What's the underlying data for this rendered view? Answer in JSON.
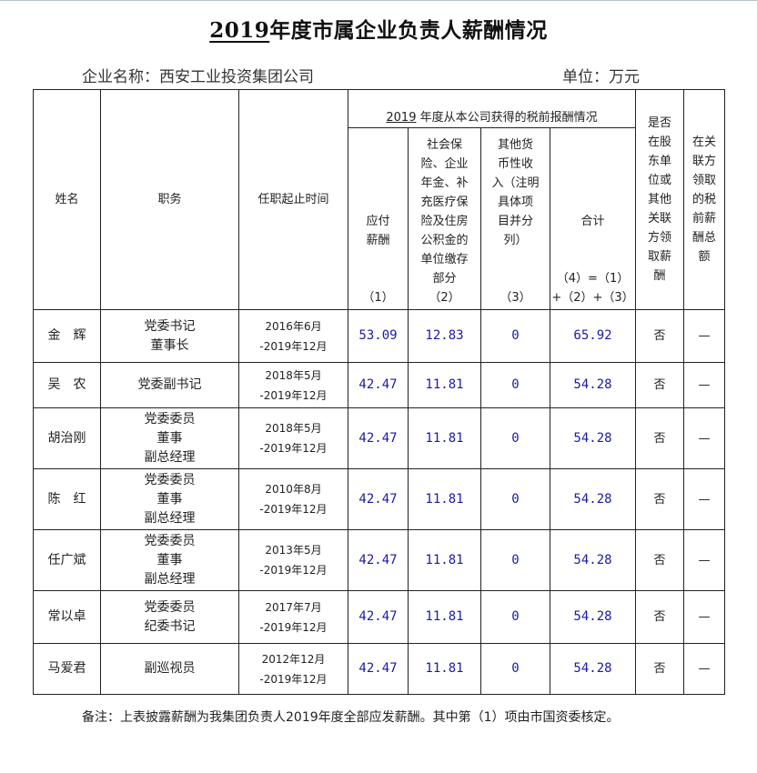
{
  "title": {
    "year": "2019",
    "rest": "年度市属企业负责人薪酬情况"
  },
  "company_label": "企业名称：西安工业投资集团公司",
  "unit_label": "单位：万元",
  "headers": {
    "name": "姓名",
    "position": "职务",
    "term": "任职起止时间",
    "group_year": "2019",
    "group_rest": "年度从本公司获得的税前报酬情况",
    "c1": "应付\n薪酬",
    "c1_no": "（1）",
    "c2": "社会保\n险、企业\n年金、补\n充医疗保\n险及住房\n公积金的\n单位缴存\n部分",
    "c2_no": "（2）",
    "c3": "其他货\n币性收\n入（注明\n具体项\n目并分\n列）",
    "c3_no": "（3）",
    "c4": "合计",
    "c4_no": "（4）=（1）\n+（2）+（3）",
    "shareholder": "是否\n在股\n东单\n位或\n其他\n关联\n方领\n取薪\n酬",
    "related": "在关\n联方\n领取\n的税\n前薪\n酬总\n额"
  },
  "rows": [
    {
      "name": "金　辉",
      "position": "党委书记\n董事长",
      "term": "2016年6月\n-2019年12月",
      "c1": "53.09",
      "c2": "12.83",
      "c3": "0",
      "c4": "65.92",
      "shareholder": "否",
      "related": "—"
    },
    {
      "name": "吴　农",
      "position": "党委副书记",
      "term": "2018年5月\n-2019年12月",
      "c1": "42.47",
      "c2": "11.81",
      "c3": "0",
      "c4": "54.28",
      "shareholder": "否",
      "related": "—"
    },
    {
      "name": "胡治刚",
      "position": "党委委员\n董事\n副总经理",
      "term": "2018年5月\n-2019年12月",
      "c1": "42.47",
      "c2": "11.81",
      "c3": "0",
      "c4": "54.28",
      "shareholder": "否",
      "related": "—"
    },
    {
      "name": "陈　红",
      "position": "党委委员\n董事\n副总经理",
      "term": "2010年8月\n-2019年12月",
      "c1": "42.47",
      "c2": "11.81",
      "c3": "0",
      "c4": "54.28",
      "shareholder": "否",
      "related": "—"
    },
    {
      "name": "任广斌",
      "position": "党委委员\n董事\n副总经理",
      "term": "2013年5月\n-2019年12月",
      "c1": "42.47",
      "c2": "11.81",
      "c3": "0",
      "c4": "54.28",
      "shareholder": "否",
      "related": "—"
    },
    {
      "name": "常以卓",
      "position": "党委委员\n纪委书记",
      "term": "2017年7月\n-2019年12月",
      "c1": "42.47",
      "c2": "11.81",
      "c3": "0",
      "c4": "54.28",
      "shareholder": "否",
      "related": "—"
    },
    {
      "name": "马爱君",
      "position": "副巡视员",
      "term": "2012年12月\n-2019年12月",
      "c1": "42.47",
      "c2": "11.81",
      "c3": "0",
      "c4": "54.28",
      "shareholder": "否",
      "related": "—"
    }
  ],
  "note": "备注：上表披露薪酬为我集团负责人2019年度全部应发薪酬。其中第（1）项由市国资委核定。",
  "colors": {
    "numbers": "#1a1aa8",
    "text": "#222222"
  }
}
